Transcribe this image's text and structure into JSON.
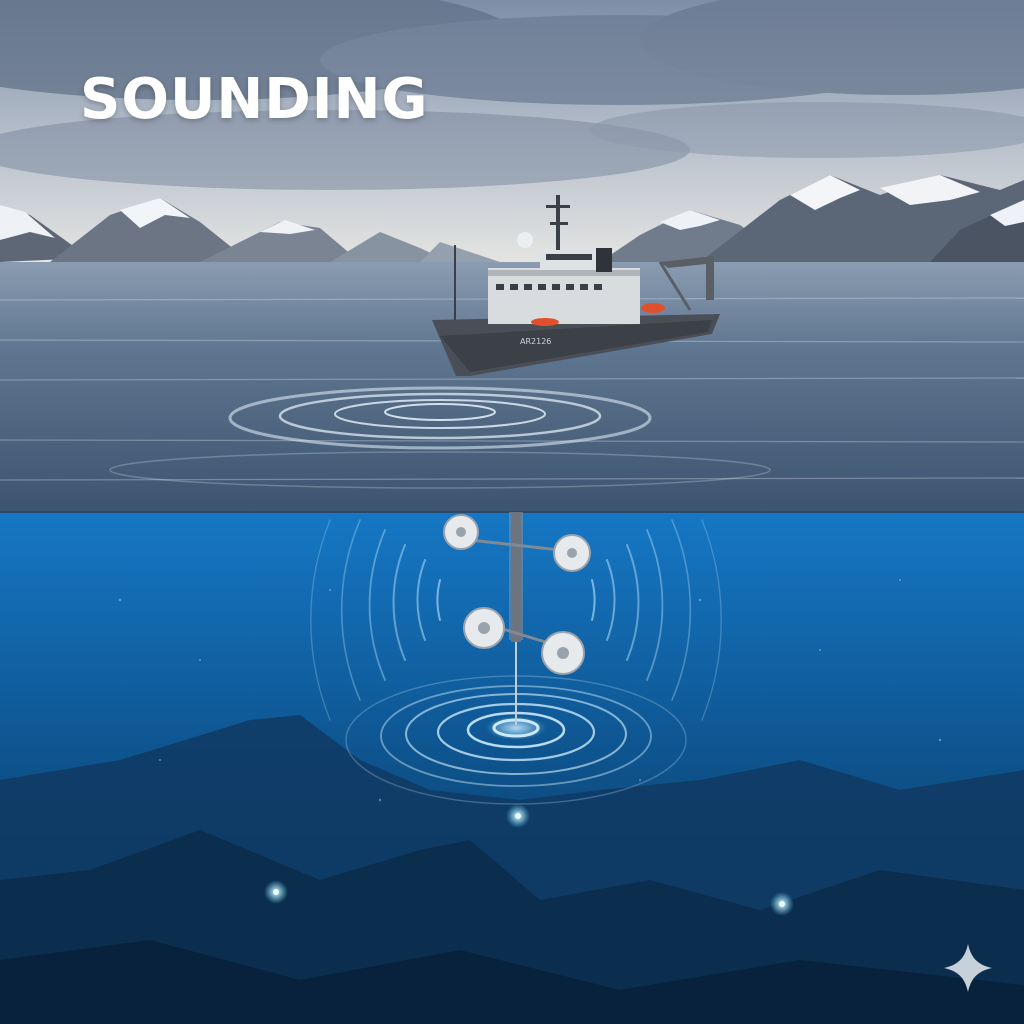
{
  "title": "SOUNDING",
  "hull_marking": "AR2126",
  "icons": {
    "corner": "sparkle-icon"
  },
  "colors": {
    "sky_top": "#8a99b0",
    "sky_horizon": "#dfe2e6",
    "sea_surface": "#4d6580",
    "underwater_top": "#1a77c2",
    "underwater_bottom": "#0a2a4a",
    "sonar_glow": "#bfe8ff",
    "hull": "#4a4f57",
    "superstructure": "#d9dcdf",
    "lifeboat": "#e0502c"
  }
}
